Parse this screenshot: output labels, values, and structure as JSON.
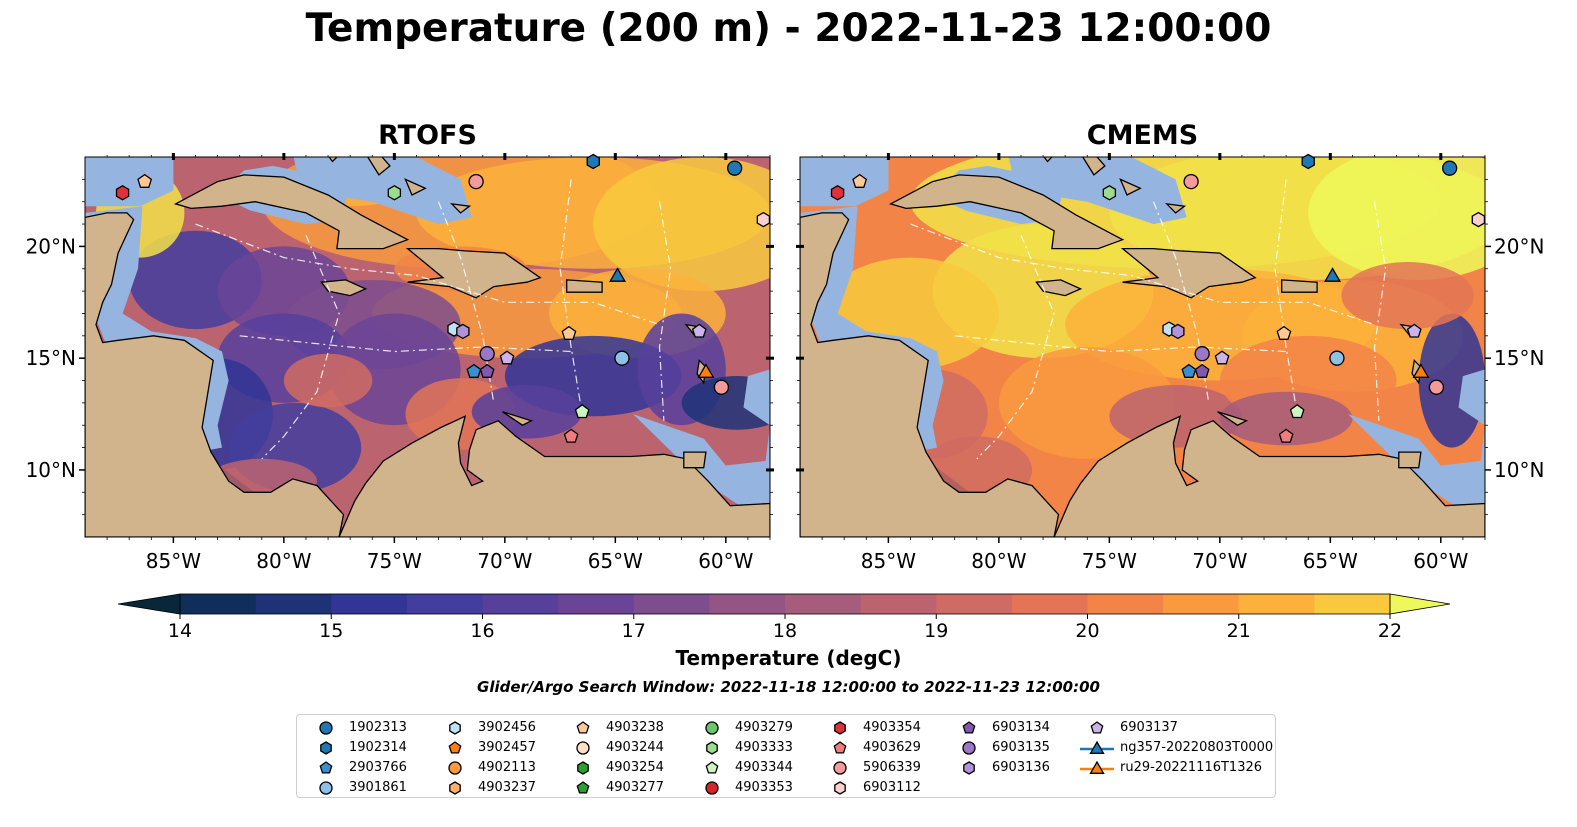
{
  "title": "Temperature (200 m) - 2022-11-23 12:00:00",
  "panels": [
    {
      "title": "RTOFS"
    },
    {
      "title": "CMEMS"
    }
  ],
  "map": {
    "lon_range": [
      -89,
      -58
    ],
    "lat_range": [
      7,
      24
    ],
    "lon_ticks": [
      "85°W",
      "80°W",
      "75°W",
      "70°W",
      "65°W",
      "60°W"
    ],
    "lat_ticks": [
      "20°N",
      "15°N",
      "10°N"
    ],
    "colors": {
      "ocean_shelf": "#95b5e0",
      "land": "#d2b48c",
      "deep_ocean": "#08283a"
    }
  },
  "colorbar": {
    "label": "Temperature (degC)",
    "min": 14,
    "max": 22,
    "extend": "both",
    "ticks": [
      "14",
      "15",
      "16",
      "17",
      "18",
      "19",
      "20",
      "21",
      "22"
    ],
    "colors": [
      "#08283a",
      "#0f2e59",
      "#1e3278",
      "#313596",
      "#433d9e",
      "#573f9c",
      "#6a4496",
      "#7d4d8e",
      "#925585",
      "#a65c7b",
      "#bc6370",
      "#d06b63",
      "#e37456",
      "#f28448",
      "#f99a3e",
      "#fbb13b",
      "#f8c93d",
      "#f2e249",
      "#eef85a"
    ]
  },
  "search_window": "Glider/Argo Search Window: 2022-11-18 12:00:00 to 2022-11-23 12:00:00",
  "legend": [
    {
      "label": "1902313",
      "marker": "circle",
      "color": "#1f77b4"
    },
    {
      "label": "1902314",
      "marker": "hexagon",
      "color": "#1f77b4"
    },
    {
      "label": "2903766",
      "marker": "pentagon",
      "color": "#3a8fd0"
    },
    {
      "label": "3901861",
      "marker": "circle",
      "color": "#8ec1e8"
    },
    {
      "label": "3902456",
      "marker": "hexagon",
      "color": "#bfe2f5"
    },
    {
      "label": "3902457",
      "marker": "pentagon",
      "color": "#ff7f0e"
    },
    {
      "label": "4902113",
      "marker": "circle",
      "color": "#ff9a3c"
    },
    {
      "label": "4903237",
      "marker": "hexagon",
      "color": "#ffb070"
    },
    {
      "label": "4903238",
      "marker": "pentagon",
      "color": "#ffc896"
    },
    {
      "label": "4903244",
      "marker": "circle",
      "color": "#ffe0c4"
    },
    {
      "label": "4903254",
      "marker": "hexagon",
      "color": "#2ca02c"
    },
    {
      "label": "4903277",
      "marker": "pentagon",
      "color": "#2ca02c"
    },
    {
      "label": "4903279",
      "marker": "circle",
      "color": "#6cc66c"
    },
    {
      "label": "4903333",
      "marker": "hexagon",
      "color": "#9bdc8f"
    },
    {
      "label": "4903344",
      "marker": "pentagon",
      "color": "#cdf5c0"
    },
    {
      "label": "4903353",
      "marker": "circle",
      "color": "#d62728"
    },
    {
      "label": "4903354",
      "marker": "hexagon",
      "color": "#e0303a"
    },
    {
      "label": "4903629",
      "marker": "pentagon",
      "color": "#f07d7d"
    },
    {
      "label": "5906339",
      "marker": "circle",
      "color": "#f49a9a"
    },
    {
      "label": "6903112",
      "marker": "hexagon",
      "color": "#fcd0cc"
    },
    {
      "label": "6903134",
      "marker": "pentagon",
      "color": "#8157b0"
    },
    {
      "label": "6903135",
      "marker": "circle",
      "color": "#9b77c9"
    },
    {
      "label": "6903136",
      "marker": "hexagon",
      "color": "#b193d9"
    },
    {
      "label": "6903137",
      "marker": "pentagon",
      "color": "#ccb3ec"
    },
    {
      "label": "ng357-20220803T0000",
      "marker": "triangle-line",
      "color": "#1f77b4"
    },
    {
      "label": "ru29-20221116T1326",
      "marker": "triangle-line",
      "color": "#ff7f0e"
    }
  ],
  "observations": [
    {
      "id": "1902313",
      "lon": -59.6,
      "lat": 23.5
    },
    {
      "id": "1902314",
      "lon": -66.0,
      "lat": 23.8
    },
    {
      "id": "4903354",
      "lon": -87.3,
      "lat": 22.4
    },
    {
      "id": "4903238",
      "lon": -86.3,
      "lat": 22.9
    },
    {
      "id": "4903333",
      "lon": -75.0,
      "lat": 22.4
    },
    {
      "id": "5906339",
      "lon": -71.3,
      "lat": 22.9
    },
    {
      "id": "6903112",
      "lon": -58.3,
      "lat": 21.2
    },
    {
      "id": "ng357-20220803T0000",
      "lon": -64.9,
      "lat": 18.7
    },
    {
      "id": "3902456",
      "lon": -72.3,
      "lat": 16.3
    },
    {
      "id": "6903136",
      "lon": -71.9,
      "lat": 16.2
    },
    {
      "id": "4903238",
      "lon": -67.1,
      "lat": 16.1
    },
    {
      "id": "6903137",
      "lon": -61.2,
      "lat": 16.2
    },
    {
      "id": "6903135",
      "lon": -70.8,
      "lat": 15.2
    },
    {
      "id": "6903137",
      "lon": -69.9,
      "lat": 15.0
    },
    {
      "id": "3901861",
      "lon": -64.7,
      "lat": 15.0
    },
    {
      "id": "2903766",
      "lon": -71.4,
      "lat": 14.4
    },
    {
      "id": "6903134",
      "lon": -70.8,
      "lat": 14.4
    },
    {
      "id": "ru29-20221116T1326",
      "lon": -60.9,
      "lat": 14.4
    },
    {
      "id": "5906339",
      "lon": -60.2,
      "lat": 13.7
    },
    {
      "id": "4903344",
      "lon": -66.5,
      "lat": 12.6
    },
    {
      "id": "4903629",
      "lon": -67.0,
      "lat": 11.5
    }
  ]
}
